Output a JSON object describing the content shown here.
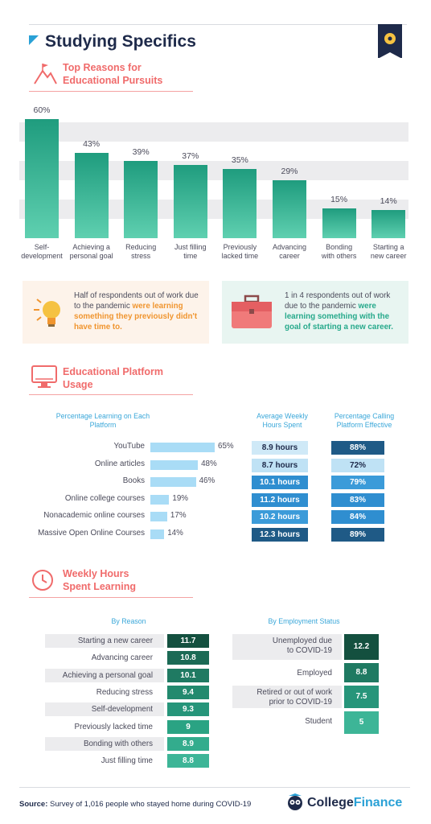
{
  "header": {
    "title": "Studying Specifics"
  },
  "sections": {
    "reasons_title_1": "Top Reasons for",
    "reasons_title_2": "Educational Pursuits",
    "platform_title_1": "Educational Platform",
    "platform_title_2": "Usage",
    "weekly_title_1": "Weekly Hours",
    "weekly_title_2": "Spent Learning"
  },
  "callouts": {
    "left_plain": "Half of respondents out of work due to the pandemic",
    "left_highlight": "were learning something they previously didn't have time to.",
    "right_plain": "1 in 4 respondents out of work due to the pandemic",
    "right_highlight": "were learning something with the goal of starting a new career."
  },
  "platform_headers": {
    "pct_learning": "Percentage Learning on Each Platform",
    "avg_hours": "Average Weekly Hours Spent",
    "pct_effective": "Percentage Calling Platform Effective"
  },
  "weekly_headers": {
    "by_reason": "By Reason",
    "by_employment": "By Employment Status"
  },
  "footer": {
    "source_label": "Source:",
    "source_text": "Survey of 1,016 people who stayed home during COVID-19",
    "brand_a": "College",
    "brand_b": "Finance"
  },
  "colors": {
    "accent": "#2aa1d6",
    "coral": "#f06b6b",
    "teal": "#26a98b",
    "navy": "#1e2a4a"
  },
  "chart_data": [
    {
      "type": "bar",
      "title": "Top Reasons for Educational Pursuits",
      "categories": [
        "Self-development",
        "Achieving a personal goal",
        "Reducing stress",
        "Just filling time",
        "Previously lacked time",
        "Advancing career",
        "Bonding with others",
        "Starting a new career"
      ],
      "category_lines": [
        [
          "Self-",
          "development"
        ],
        [
          "Achieving a",
          "personal goal"
        ],
        [
          "Reducing",
          "stress"
        ],
        [
          "Just filling",
          "time"
        ],
        [
          "Previously",
          "lacked time"
        ],
        [
          "Advancing",
          "career"
        ],
        [
          "Bonding",
          "with others"
        ],
        [
          "Starting a",
          "new career"
        ]
      ],
      "values": [
        60,
        43,
        39,
        37,
        35,
        29,
        15,
        14
      ],
      "value_labels": [
        "60%",
        "43%",
        "39%",
        "37%",
        "35%",
        "29%",
        "15%",
        "14%"
      ],
      "ylim": [
        0,
        60
      ]
    },
    {
      "type": "table",
      "title": "Educational Platform Usage",
      "rows": [
        {
          "platform": "YouTube",
          "pct": 65,
          "pct_label": "65%",
          "hours": "8.9 hours",
          "effective": "88%"
        },
        {
          "platform": "Online articles",
          "pct": 48,
          "pct_label": "48%",
          "hours": "8.7 hours",
          "effective": "72%"
        },
        {
          "platform": "Books",
          "pct": 46,
          "pct_label": "46%",
          "hours": "10.1 hours",
          "effective": "79%"
        },
        {
          "platform": "Online college courses",
          "pct": 19,
          "pct_label": "19%",
          "hours": "11.2 hours",
          "effective": "83%"
        },
        {
          "platform": "Nonacademic online courses",
          "pct": 17,
          "pct_label": "17%",
          "hours": "10.2 hours",
          "effective": "84%"
        },
        {
          "platform": "Massive Open Online Courses",
          "pct": 14,
          "pct_label": "14%",
          "hours": "12.3 hours",
          "effective": "89%"
        }
      ]
    },
    {
      "type": "table",
      "title": "Weekly Hours Spent Learning",
      "by_reason": [
        {
          "reason": "Starting a new career",
          "hours": "11.7"
        },
        {
          "reason": "Advancing career",
          "hours": "10.8"
        },
        {
          "reason": "Achieving a personal goal",
          "hours": "10.1"
        },
        {
          "reason": "Reducing stress",
          "hours": "9.4"
        },
        {
          "reason": "Self-development",
          "hours": "9.3"
        },
        {
          "reason": "Previously lacked time",
          "hours": "9"
        },
        {
          "reason": "Bonding with others",
          "hours": "8.9"
        },
        {
          "reason": "Just filling time",
          "hours": "8.8"
        }
      ],
      "by_employment": [
        {
          "lines": [
            "Unemployed due",
            "to COVID-19"
          ],
          "hours": "12.2"
        },
        {
          "lines": [
            "Employed"
          ],
          "hours": "8.8"
        },
        {
          "lines": [
            "Retired or out of work",
            "prior to COVID-19"
          ],
          "hours": "7.5"
        },
        {
          "lines": [
            "Student"
          ],
          "hours": "5"
        }
      ]
    }
  ]
}
